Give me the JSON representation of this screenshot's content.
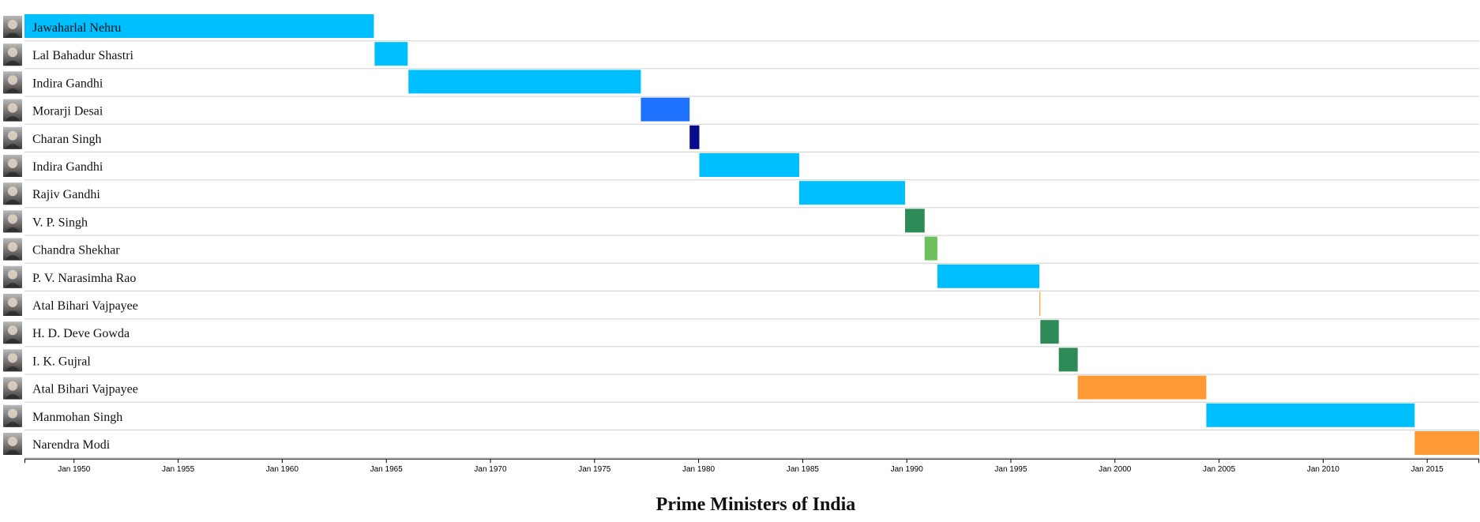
{
  "chart_data": {
    "type": "timeline",
    "title": "Prime Ministers of India",
    "x_range": [
      "1947-08-15",
      "2017-07-01"
    ],
    "x_ticks": [
      {
        "date": "1950-01-01",
        "label": "Jan 1950"
      },
      {
        "date": "1955-01-01",
        "label": "Jan 1955"
      },
      {
        "date": "1960-01-01",
        "label": "Jan 1960"
      },
      {
        "date": "1965-01-01",
        "label": "Jan 1965"
      },
      {
        "date": "1970-01-01",
        "label": "Jan 1970"
      },
      {
        "date": "1975-01-01",
        "label": "Jan 1975"
      },
      {
        "date": "1980-01-01",
        "label": "Jan 1980"
      },
      {
        "date": "1985-01-01",
        "label": "Jan 1985"
      },
      {
        "date": "1990-01-01",
        "label": "Jan 1990"
      },
      {
        "date": "1995-01-01",
        "label": "Jan 1995"
      },
      {
        "date": "2000-01-01",
        "label": "Jan 2000"
      },
      {
        "date": "2005-01-01",
        "label": "Jan 2005"
      },
      {
        "date": "2010-01-01",
        "label": "Jan 2010"
      },
      {
        "date": "2015-01-01",
        "label": "Jan 2015"
      }
    ],
    "rows": [
      {
        "name": "Jawaharlal Nehru",
        "start": "1947-08-15",
        "end": "1964-05-27",
        "color": "#00bfff",
        "photo": "portrait-icon"
      },
      {
        "name": "Lal Bahadur Shastri",
        "start": "1964-06-09",
        "end": "1966-01-11",
        "color": "#00bfff",
        "photo": "portrait-icon"
      },
      {
        "name": "Indira Gandhi",
        "start": "1966-01-24",
        "end": "1977-03-24",
        "color": "#00bfff",
        "photo": "portrait-icon"
      },
      {
        "name": "Morarji Desai",
        "start": "1977-03-24",
        "end": "1979-07-28",
        "color": "#1e70ff",
        "photo": "portrait-icon"
      },
      {
        "name": "Charan Singh",
        "start": "1979-07-28",
        "end": "1980-01-14",
        "color": "#0a0a8c",
        "photo": "portrait-icon"
      },
      {
        "name": "Indira Gandhi",
        "start": "1980-01-14",
        "end": "1984-10-31",
        "color": "#00bfff",
        "photo": "portrait-icon"
      },
      {
        "name": "Rajiv Gandhi",
        "start": "1984-10-31",
        "end": "1989-12-02",
        "color": "#00bfff",
        "photo": "portrait-icon"
      },
      {
        "name": "V. P. Singh",
        "start": "1989-12-02",
        "end": "1990-11-10",
        "color": "#2e8b57",
        "photo": "portrait-icon"
      },
      {
        "name": "Chandra Shekhar",
        "start": "1990-11-10",
        "end": "1991-06-21",
        "color": "#6cc15a",
        "photo": "portrait-icon"
      },
      {
        "name": "P. V. Narasimha Rao",
        "start": "1991-06-21",
        "end": "1996-05-16",
        "color": "#00bfff",
        "photo": "portrait-icon"
      },
      {
        "name": "Atal Bihari Vajpayee",
        "start": "1996-05-16",
        "end": "1996-06-01",
        "color": "#ff9933",
        "photo": "portrait-icon"
      },
      {
        "name": "H. D. Deve Gowda",
        "start": "1996-06-01",
        "end": "1997-04-21",
        "color": "#2e8b57",
        "photo": "portrait-icon"
      },
      {
        "name": "I. K. Gujral",
        "start": "1997-04-21",
        "end": "1998-03-19",
        "color": "#2e8b57",
        "photo": "portrait-icon"
      },
      {
        "name": "Atal Bihari Vajpayee",
        "start": "1998-03-19",
        "end": "2004-05-22",
        "color": "#ff9933",
        "photo": "portrait-icon"
      },
      {
        "name": "Manmohan Singh",
        "start": "2004-05-22",
        "end": "2014-05-26",
        "color": "#00bfff",
        "photo": "portrait-icon"
      },
      {
        "name": "Narendra Modi",
        "start": "2014-05-26",
        "end": "2017-07-01",
        "color": "#ff9933",
        "photo": "portrait-icon"
      }
    ]
  }
}
